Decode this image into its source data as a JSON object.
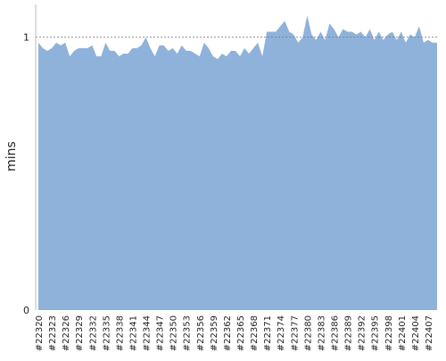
{
  "chart_data": {
    "type": "area",
    "y_label": "mins",
    "color": "#8fb2db",
    "categories": [
      "#22320",
      null,
      null,
      "#22323",
      null,
      null,
      "#22326",
      null,
      null,
      "#22329",
      null,
      null,
      "#22332",
      null,
      null,
      "#22335",
      null,
      null,
      "#22338",
      null,
      null,
      "#22341",
      null,
      null,
      "#22344",
      null,
      null,
      "#22347",
      null,
      null,
      "#22350",
      null,
      null,
      "#22353",
      null,
      null,
      "#22356",
      null,
      null,
      "#22359",
      null,
      null,
      "#22362",
      null,
      null,
      "#22365",
      null,
      null,
      "#22368",
      null,
      null,
      "#22371",
      null,
      null,
      "#22374",
      null,
      null,
      "#22377",
      null,
      null,
      "#22380",
      null,
      null,
      "#22383",
      null,
      null,
      "#22386",
      null,
      null,
      "#22389",
      null,
      null,
      "#22392",
      null,
      null,
      "#22395",
      null,
      null,
      "#22398",
      null,
      null,
      "#22401",
      null,
      null,
      "#22404",
      null,
      null,
      "#22407",
      null,
      null
    ],
    "values": [
      0.98,
      0.96,
      0.95,
      0.96,
      0.98,
      0.97,
      0.98,
      0.93,
      0.95,
      0.96,
      0.96,
      0.96,
      0.97,
      0.93,
      0.93,
      0.98,
      0.95,
      0.95,
      0.93,
      0.94,
      0.94,
      0.96,
      0.96,
      0.97,
      1.0,
      0.96,
      0.93,
      0.97,
      0.97,
      0.95,
      0.96,
      0.94,
      0.97,
      0.95,
      0.95,
      0.94,
      0.93,
      0.98,
      0.96,
      0.93,
      0.92,
      0.94,
      0.93,
      0.95,
      0.95,
      0.93,
      0.96,
      0.94,
      0.96,
      0.98,
      0.93,
      1.02,
      1.02,
      1.02,
      1.04,
      1.06,
      1.02,
      1.01,
      0.98,
      1.0,
      1.08,
      1.01,
      0.99,
      1.02,
      0.99,
      1.05,
      1.03,
      1.0,
      1.03,
      1.02,
      1.02,
      1.01,
      1.02,
      1.0,
      1.03,
      0.99,
      1.02,
      0.99,
      1.01,
      1.02,
      0.99,
      1.02,
      0.98,
      1.01,
      1.0,
      1.04,
      0.98,
      0.99,
      0.98,
      0.98
    ],
    "ylim": [
      0,
      1.12
    ],
    "yticks": [
      0,
      1
    ],
    "grid": true
  }
}
